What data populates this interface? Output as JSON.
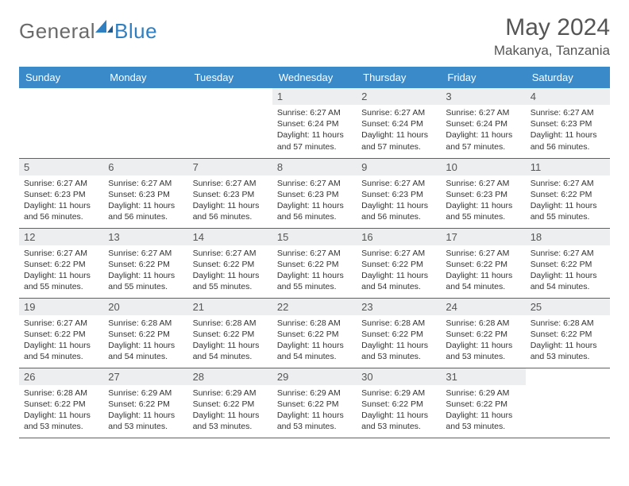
{
  "brand": {
    "part1": "General",
    "part2": "Blue"
  },
  "title": {
    "month": "May 2024",
    "location": "Makanya, Tanzania"
  },
  "colors": {
    "header_bg": "#3a89c9",
    "header_text": "#ffffff",
    "daynum_bg": "#eceef0",
    "border": "#3a6a9a",
    "brand_gray": "#6a6a6a",
    "brand_blue": "#2f7fc1",
    "text": "#333333",
    "page_bg": "#ffffff"
  },
  "weekdays": [
    "Sunday",
    "Monday",
    "Tuesday",
    "Wednesday",
    "Thursday",
    "Friday",
    "Saturday"
  ],
  "first_day_index": 3,
  "days": [
    {
      "n": 1,
      "sunrise": "6:27 AM",
      "sunset": "6:24 PM",
      "dl": "11 hours and 57 minutes."
    },
    {
      "n": 2,
      "sunrise": "6:27 AM",
      "sunset": "6:24 PM",
      "dl": "11 hours and 57 minutes."
    },
    {
      "n": 3,
      "sunrise": "6:27 AM",
      "sunset": "6:24 PM",
      "dl": "11 hours and 57 minutes."
    },
    {
      "n": 4,
      "sunrise": "6:27 AM",
      "sunset": "6:23 PM",
      "dl": "11 hours and 56 minutes."
    },
    {
      "n": 5,
      "sunrise": "6:27 AM",
      "sunset": "6:23 PM",
      "dl": "11 hours and 56 minutes."
    },
    {
      "n": 6,
      "sunrise": "6:27 AM",
      "sunset": "6:23 PM",
      "dl": "11 hours and 56 minutes."
    },
    {
      "n": 7,
      "sunrise": "6:27 AM",
      "sunset": "6:23 PM",
      "dl": "11 hours and 56 minutes."
    },
    {
      "n": 8,
      "sunrise": "6:27 AM",
      "sunset": "6:23 PM",
      "dl": "11 hours and 56 minutes."
    },
    {
      "n": 9,
      "sunrise": "6:27 AM",
      "sunset": "6:23 PM",
      "dl": "11 hours and 56 minutes."
    },
    {
      "n": 10,
      "sunrise": "6:27 AM",
      "sunset": "6:23 PM",
      "dl": "11 hours and 55 minutes."
    },
    {
      "n": 11,
      "sunrise": "6:27 AM",
      "sunset": "6:22 PM",
      "dl": "11 hours and 55 minutes."
    },
    {
      "n": 12,
      "sunrise": "6:27 AM",
      "sunset": "6:22 PM",
      "dl": "11 hours and 55 minutes."
    },
    {
      "n": 13,
      "sunrise": "6:27 AM",
      "sunset": "6:22 PM",
      "dl": "11 hours and 55 minutes."
    },
    {
      "n": 14,
      "sunrise": "6:27 AM",
      "sunset": "6:22 PM",
      "dl": "11 hours and 55 minutes."
    },
    {
      "n": 15,
      "sunrise": "6:27 AM",
      "sunset": "6:22 PM",
      "dl": "11 hours and 55 minutes."
    },
    {
      "n": 16,
      "sunrise": "6:27 AM",
      "sunset": "6:22 PM",
      "dl": "11 hours and 54 minutes."
    },
    {
      "n": 17,
      "sunrise": "6:27 AM",
      "sunset": "6:22 PM",
      "dl": "11 hours and 54 minutes."
    },
    {
      "n": 18,
      "sunrise": "6:27 AM",
      "sunset": "6:22 PM",
      "dl": "11 hours and 54 minutes."
    },
    {
      "n": 19,
      "sunrise": "6:27 AM",
      "sunset": "6:22 PM",
      "dl": "11 hours and 54 minutes."
    },
    {
      "n": 20,
      "sunrise": "6:28 AM",
      "sunset": "6:22 PM",
      "dl": "11 hours and 54 minutes."
    },
    {
      "n": 21,
      "sunrise": "6:28 AM",
      "sunset": "6:22 PM",
      "dl": "11 hours and 54 minutes."
    },
    {
      "n": 22,
      "sunrise": "6:28 AM",
      "sunset": "6:22 PM",
      "dl": "11 hours and 54 minutes."
    },
    {
      "n": 23,
      "sunrise": "6:28 AM",
      "sunset": "6:22 PM",
      "dl": "11 hours and 53 minutes."
    },
    {
      "n": 24,
      "sunrise": "6:28 AM",
      "sunset": "6:22 PM",
      "dl": "11 hours and 53 minutes."
    },
    {
      "n": 25,
      "sunrise": "6:28 AM",
      "sunset": "6:22 PM",
      "dl": "11 hours and 53 minutes."
    },
    {
      "n": 26,
      "sunrise": "6:28 AM",
      "sunset": "6:22 PM",
      "dl": "11 hours and 53 minutes."
    },
    {
      "n": 27,
      "sunrise": "6:29 AM",
      "sunset": "6:22 PM",
      "dl": "11 hours and 53 minutes."
    },
    {
      "n": 28,
      "sunrise": "6:29 AM",
      "sunset": "6:22 PM",
      "dl": "11 hours and 53 minutes."
    },
    {
      "n": 29,
      "sunrise": "6:29 AM",
      "sunset": "6:22 PM",
      "dl": "11 hours and 53 minutes."
    },
    {
      "n": 30,
      "sunrise": "6:29 AM",
      "sunset": "6:22 PM",
      "dl": "11 hours and 53 minutes."
    },
    {
      "n": 31,
      "sunrise": "6:29 AM",
      "sunset": "6:22 PM",
      "dl": "11 hours and 53 minutes."
    }
  ],
  "labels": {
    "sunrise": "Sunrise:",
    "sunset": "Sunset:",
    "daylight": "Daylight:"
  }
}
